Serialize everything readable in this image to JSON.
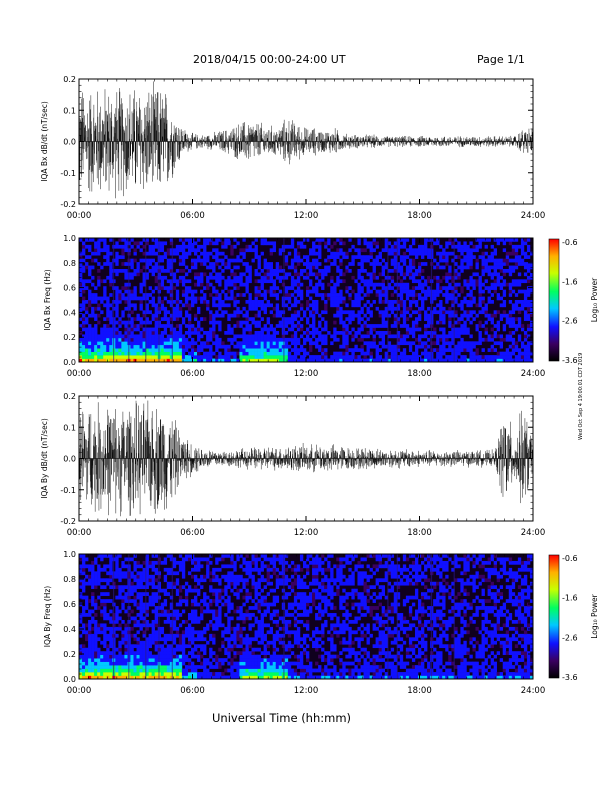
{
  "header": {
    "date_range": "2018/04/15  00:00-24:00 UT",
    "page_label": "Page 1/1"
  },
  "footer": {
    "xlabel": "Universal Time (hh:mm)"
  },
  "side_note": "Wed Oct Sep 4 19:00:01 CDT 2019",
  "colorbar": {
    "label": "Log₁₀ Power",
    "ticks": [
      "-0.6",
      "-1.6",
      "-2.6",
      "-3.6"
    ],
    "range": [
      -3.6,
      -0.6
    ],
    "colors": [
      "#000000",
      "#3a0060",
      "#1010ff",
      "#00c8ff",
      "#00ff60",
      "#c8ff00",
      "#ffb000",
      "#ff0000"
    ]
  },
  "chart_data": [
    {
      "type": "line",
      "panel": "IQA Bx dB/dt",
      "ylabel": "IQA Bx dB/dt (nT/sec)",
      "x_ticks": [
        "00:00",
        "06:00",
        "12:00",
        "18:00",
        "24:00"
      ],
      "xlim": [
        0,
        24
      ],
      "ylim": [
        -0.2,
        0.2
      ],
      "y_ticks": [
        "-0.2",
        "-0.1",
        "0.0",
        "0.1",
        "0.2"
      ],
      "envelope": {
        "x_hours": [
          0,
          0.5,
          1,
          1.5,
          2,
          2.5,
          3,
          3.5,
          4,
          4.5,
          5,
          5.5,
          6,
          6.5,
          7,
          7.5,
          8,
          8.5,
          9,
          9.5,
          10,
          10.5,
          11,
          11.5,
          12,
          12.5,
          13,
          13.5,
          14,
          14.5,
          15,
          15.5,
          16,
          16.5,
          17,
          17.5,
          18,
          18.5,
          19,
          19.5,
          20,
          20.5,
          21,
          21.5,
          22,
          22.5,
          23,
          23.5,
          24
        ],
        "amplitude": [
          0.2,
          0.2,
          0.2,
          0.2,
          0.2,
          0.2,
          0.2,
          0.2,
          0.2,
          0.2,
          0.12,
          0.05,
          0.03,
          0.025,
          0.03,
          0.04,
          0.05,
          0.07,
          0.08,
          0.07,
          0.06,
          0.05,
          0.09,
          0.07,
          0.05,
          0.05,
          0.04,
          0.05,
          0.03,
          0.025,
          0.025,
          0.025,
          0.02,
          0.02,
          0.02,
          0.02,
          0.02,
          0.02,
          0.02,
          0.02,
          0.02,
          0.02,
          0.02,
          0.02,
          0.02,
          0.02,
          0.02,
          0.05,
          0.05
        ]
      },
      "color": "#000000"
    },
    {
      "type": "heatmap",
      "panel": "IQA Bx Freq",
      "ylabel": "IQA Bx Freq (Hz)",
      "x_ticks": [
        "00:00",
        "06:00",
        "12:00",
        "18:00",
        "24:00"
      ],
      "xlim": [
        0,
        24
      ],
      "ylim": [
        0,
        1.0
      ],
      "y_ticks": [
        "0.0",
        "0.2",
        "0.4",
        "0.6",
        "0.8",
        "1.0"
      ],
      "colorbar_label": "Log₁₀ Power",
      "zlim": [
        -3.6,
        -0.6
      ]
    },
    {
      "type": "line",
      "panel": "IQA By dB/dt",
      "ylabel": "IQA By dB/dt (nT/sec)",
      "x_ticks": [
        "00:00",
        "06:00",
        "12:00",
        "18:00",
        "24:00"
      ],
      "xlim": [
        0,
        24
      ],
      "ylim": [
        -0.2,
        0.2
      ],
      "y_ticks": [
        "-0.2",
        "-0.1",
        "0.0",
        "0.1",
        "0.2"
      ],
      "envelope": {
        "x_hours": [
          0,
          0.5,
          1,
          1.5,
          2,
          2.5,
          3,
          3.5,
          4,
          4.5,
          5,
          5.5,
          6,
          6.5,
          7,
          7.5,
          8,
          8.5,
          9,
          9.5,
          10,
          10.5,
          11,
          11.5,
          12,
          12.5,
          13,
          13.5,
          14,
          14.5,
          15,
          15.5,
          16,
          16.5,
          17,
          17.5,
          18,
          18.5,
          19,
          19.5,
          20,
          20.5,
          21,
          21.5,
          22,
          22.5,
          23,
          23.5,
          24
        ],
        "amplitude": [
          0.2,
          0.2,
          0.2,
          0.2,
          0.2,
          0.2,
          0.2,
          0.2,
          0.2,
          0.2,
          0.15,
          0.08,
          0.06,
          0.04,
          0.035,
          0.03,
          0.03,
          0.035,
          0.04,
          0.04,
          0.045,
          0.04,
          0.05,
          0.05,
          0.05,
          0.05,
          0.05,
          0.05,
          0.045,
          0.04,
          0.04,
          0.04,
          0.035,
          0.035,
          0.035,
          0.035,
          0.03,
          0.03,
          0.03,
          0.03,
          0.03,
          0.03,
          0.03,
          0.03,
          0.03,
          0.2,
          0.08,
          0.2,
          0.06
        ]
      },
      "color": "#000000"
    },
    {
      "type": "heatmap",
      "panel": "IQA By Freq",
      "ylabel": "IQA By Freq (Hz)",
      "x_ticks": [
        "00:00",
        "06:00",
        "12:00",
        "18:00",
        "24:00"
      ],
      "xlim": [
        0,
        24
      ],
      "ylim": [
        0,
        1.0
      ],
      "y_ticks": [
        "0.0",
        "0.2",
        "0.4",
        "0.6",
        "0.8",
        "1.0"
      ],
      "colorbar_label": "Log₁₀ Power",
      "zlim": [
        -3.6,
        -0.6
      ]
    }
  ]
}
